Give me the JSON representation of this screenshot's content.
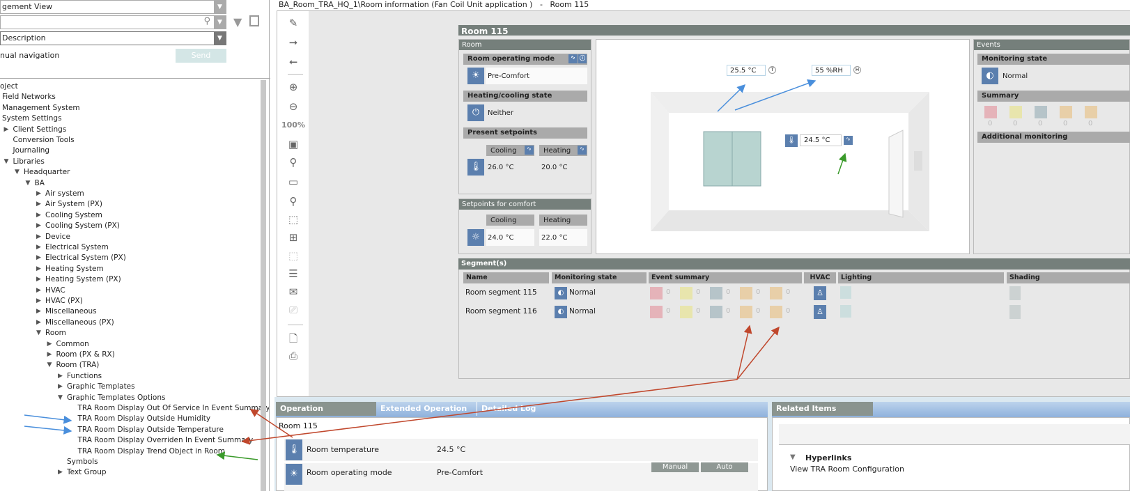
{
  "left": {
    "view_select": "gement View",
    "search_value": "",
    "description_select": "Description",
    "manual_nav_label": "nual navigation",
    "send_label": "Send",
    "tree": [
      {
        "label": "oject",
        "level": 0,
        "arrow": ""
      },
      {
        "label": "Field Networks",
        "level": 0,
        "arrow": ""
      },
      {
        "label": "Management System",
        "level": 0,
        "arrow": ""
      },
      {
        "label": "System Settings",
        "level": 0,
        "arrow": ""
      },
      {
        "label": "Client Settings",
        "level": 1,
        "arrow": "right"
      },
      {
        "label": "Conversion Tools",
        "level": 1,
        "arrow": ""
      },
      {
        "label": "Journaling",
        "level": 1,
        "arrow": ""
      },
      {
        "label": "Libraries",
        "level": 1,
        "arrow": "down"
      },
      {
        "label": "Headquarter",
        "level": 2,
        "arrow": "down"
      },
      {
        "label": "BA",
        "level": 3,
        "arrow": "down"
      },
      {
        "label": "Air system",
        "level": 4,
        "arrow": "right"
      },
      {
        "label": "Air System (PX)",
        "level": 4,
        "arrow": "right"
      },
      {
        "label": "Cooling System",
        "level": 4,
        "arrow": "right"
      },
      {
        "label": "Cooling System (PX)",
        "level": 4,
        "arrow": "right"
      },
      {
        "label": "Device",
        "level": 4,
        "arrow": "right"
      },
      {
        "label": "Electrical System",
        "level": 4,
        "arrow": "right"
      },
      {
        "label": "Electrical System (PX)",
        "level": 4,
        "arrow": "right"
      },
      {
        "label": "Heating System",
        "level": 4,
        "arrow": "right"
      },
      {
        "label": "Heating System (PX)",
        "level": 4,
        "arrow": "right"
      },
      {
        "label": "HVAC",
        "level": 4,
        "arrow": "right"
      },
      {
        "label": "HVAC (PX)",
        "level": 4,
        "arrow": "right"
      },
      {
        "label": "Miscellaneous",
        "level": 4,
        "arrow": "right"
      },
      {
        "label": "Miscellaneous (PX)",
        "level": 4,
        "arrow": "right"
      },
      {
        "label": "Room",
        "level": 4,
        "arrow": "down"
      },
      {
        "label": "Common",
        "level": 5,
        "arrow": "right"
      },
      {
        "label": "Room (PX & RX)",
        "level": 5,
        "arrow": "right"
      },
      {
        "label": "Room (TRA)",
        "level": 5,
        "arrow": "down"
      },
      {
        "label": "Functions",
        "level": 6,
        "arrow": "right"
      },
      {
        "label": "Graphic Templates",
        "level": 6,
        "arrow": "right"
      },
      {
        "label": "Graphic Templates Options",
        "level": 6,
        "arrow": "down"
      },
      {
        "label": "TRA Room Display Out Of Service In Event Summary",
        "level": 7,
        "arrow": ""
      },
      {
        "label": "TRA Room Display Outside Humidity",
        "level": 7,
        "arrow": ""
      },
      {
        "label": "TRA Room Display Outside Temperature",
        "level": 7,
        "arrow": ""
      },
      {
        "label": "TRA Room Display Overriden In Event Summary",
        "level": 7,
        "arrow": ""
      },
      {
        "label": "TRA Room Display Trend Object in Room",
        "level": 7,
        "arrow": ""
      },
      {
        "label": "Symbols",
        "level": 6,
        "arrow": ""
      },
      {
        "label": "Text Group",
        "level": 6,
        "arrow": "right"
      }
    ]
  },
  "header": {
    "path": "BA_Room_TRA_HQ_1\\Room information (Fan Coil Unit application )",
    "sep": "-",
    "room": "Room 115"
  },
  "toolbar": {
    "zoom": "100%"
  },
  "graphic": {
    "title": "Room 115",
    "room": {
      "title": "Room",
      "op_mode_label": "Room operating mode",
      "op_mode_value": "Pre-Comfort",
      "hc_label": "Heating/cooling state",
      "hc_value": "Neither",
      "setpoints_label": "Present setpoints",
      "cooling": "Cooling",
      "heating": "Heating",
      "cool_val": "26.0 °C",
      "heat_val": "20.0 °C"
    },
    "comfort": {
      "title": "Setpoints for comfort",
      "cooling": "Cooling",
      "heating": "Heating",
      "cool_val": "24.0 °C",
      "heat_val": "22.0 °C"
    },
    "scene": {
      "outside_temp": "25.5 °C",
      "outside_hum": "55 %RH",
      "temp_badge": "T",
      "hum_badge": "H",
      "room_temp": "24.5 °C"
    },
    "events": {
      "title": "Events",
      "monitoring_label": "Monitoring state",
      "monitoring_value": "Normal",
      "summary_label": "Summary",
      "counts": [
        "0",
        "0",
        "0",
        "0",
        "0"
      ],
      "additional_label": "Additional monitoring"
    },
    "segments": {
      "title": "Segment(s)",
      "columns": [
        "Name",
        "Monitoring state",
        "Event summary",
        "HVAC",
        "Lighting",
        "Shading"
      ],
      "rows": [
        {
          "name": "Room segment 115",
          "state": "Normal",
          "counts": [
            "0",
            "0",
            "0",
            "0",
            "0"
          ]
        },
        {
          "name": "Room segment 116",
          "state": "Normal",
          "counts": [
            "0",
            "0",
            "0",
            "0",
            "0"
          ]
        }
      ]
    }
  },
  "bottom": {
    "tabs": [
      "Operation",
      "Extended Operation",
      "Detailed Log"
    ],
    "room": "Room 115",
    "rows": [
      {
        "label": "Room temperature",
        "value": "24.5 °C"
      },
      {
        "label": "Room operating mode",
        "value": "Pre-Comfort"
      }
    ],
    "manual": "Manual",
    "auto": "Auto",
    "related": {
      "tab": "Related Items",
      "hyperlinks": "Hyperlinks",
      "link": "View TRA Room Configuration"
    }
  },
  "colors": {
    "accent": "#5b7fae",
    "header": "#757f7b",
    "annotation_red": "#c0472c",
    "annotation_blue": "#4a8fdc",
    "annotation_green": "#3a9a2a"
  }
}
